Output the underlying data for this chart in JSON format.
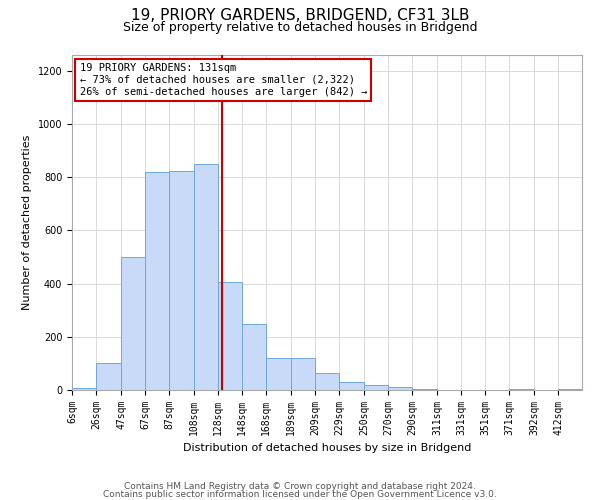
{
  "title": "19, PRIORY GARDENS, BRIDGEND, CF31 3LB",
  "subtitle": "Size of property relative to detached houses in Bridgend",
  "xlabel": "Distribution of detached houses by size in Bridgend",
  "ylabel": "Number of detached properties",
  "bar_labels": [
    "6sqm",
    "26sqm",
    "47sqm",
    "67sqm",
    "87sqm",
    "108sqm",
    "128sqm",
    "148sqm",
    "168sqm",
    "189sqm",
    "209sqm",
    "229sqm",
    "250sqm",
    "270sqm",
    "290sqm",
    "311sqm",
    "331sqm",
    "351sqm",
    "371sqm",
    "392sqm",
    "412sqm"
  ],
  "bar_heights": [
    8,
    100,
    500,
    820,
    825,
    850,
    405,
    250,
    120,
    120,
    65,
    30,
    20,
    10,
    5,
    0,
    0,
    0,
    5,
    0,
    5
  ],
  "bar_color": "#c9daf8",
  "bar_edge_color": "#6fa8dc",
  "property_line_x": 131,
  "bin_edges": [
    6,
    26,
    47,
    67,
    87,
    108,
    128,
    148,
    168,
    189,
    209,
    229,
    250,
    270,
    290,
    311,
    331,
    351,
    371,
    392,
    412,
    432
  ],
  "annotation_text": "19 PRIORY GARDENS: 131sqm\n← 73% of detached houses are smaller (2,322)\n26% of semi-detached houses are larger (842) →",
  "annotation_box_color": "#ffffff",
  "annotation_box_edge_color": "#cc0000",
  "vline_color": "#cc0000",
  "ylim": [
    0,
    1260
  ],
  "yticks": [
    0,
    200,
    400,
    600,
    800,
    1000,
    1200
  ],
  "footer1": "Contains HM Land Registry data © Crown copyright and database right 2024.",
  "footer2": "Contains public sector information licensed under the Open Government Licence v3.0.",
  "bg_color": "#ffffff",
  "grid_color": "#d4d4d4",
  "title_fontsize": 11,
  "subtitle_fontsize": 9,
  "axis_label_fontsize": 8,
  "tick_fontsize": 7,
  "annotation_fontsize": 7.5,
  "footer_fontsize": 6.5
}
